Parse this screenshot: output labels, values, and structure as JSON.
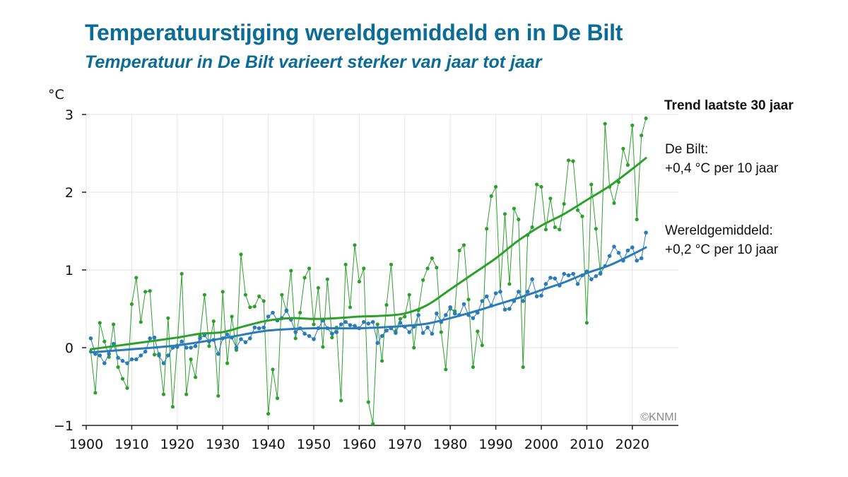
{
  "title": "Temperatuurstijging wereldgemiddeld en in De Bilt",
  "subtitle": "Temperatuur in De Bilt varieert sterker van jaar tot jaar",
  "credit": "©KNMI",
  "annotations": {
    "heading": "Trend laatste 30 jaar",
    "debilt_name": "De Bilt:",
    "debilt_rate": "+0,4 °C per 10 jaar",
    "world_name": "Wereldgemiddeld:",
    "world_rate": "+0,2 °C  per 10 jaar"
  },
  "colors": {
    "debilt": "#2ca02c",
    "world": "#2b7bba",
    "title": "#0b6c96"
  },
  "chart_data": {
    "type": "line",
    "ylabel": "°C",
    "ylim": [
      -1,
      3
    ],
    "xlim": [
      1900,
      2025
    ],
    "x_ticks": [
      "1900",
      "1910",
      "1920",
      "1930",
      "1940",
      "1950",
      "1960",
      "1970",
      "1980",
      "1990",
      "2000",
      "2010",
      "2020"
    ],
    "y_ticks": [
      "−1",
      "0",
      "1",
      "2",
      "3"
    ],
    "grid": true,
    "series": [
      {
        "key": "debilt_annual",
        "color": "#2ca02c",
        "x_start": 1901,
        "values": [
          -0.05,
          -0.58,
          0.32,
          0.08,
          -0.12,
          0.3,
          -0.25,
          -0.4,
          -0.52,
          0.56,
          0.9,
          0.33,
          0.72,
          0.73,
          -0.09,
          -0.08,
          -0.6,
          0.38,
          -0.76,
          0.03,
          0.95,
          -0.6,
          -0.15,
          -0.38,
          0.15,
          0.68,
          0.02,
          0.34,
          -0.62,
          0.72,
          -0.2,
          0.4,
          -0.03,
          1.2,
          0.68,
          0.52,
          0.53,
          0.66,
          0.6,
          -0.85,
          -0.28,
          -0.65,
          0.68,
          0.47,
          0.99,
          0.12,
          0.45,
          0.9,
          1.02,
          0.3,
          0.77,
          0.01,
          0.88,
          0.13,
          0.26,
          -0.68,
          1.07,
          0.52,
          1.32,
          0.85,
          1.02,
          -0.7,
          -0.98,
          0.3,
          -0.17,
          0.55,
          1.07,
          0.21,
          0.37,
          0.4,
          0.68,
          0.0,
          0.48,
          0.87,
          1.02,
          1.15,
          1.03,
          0.2,
          -0.28,
          0.5,
          0.47,
          1.25,
          1.32,
          0.62,
          -0.25,
          0.21,
          0.03,
          1.53,
          1.95,
          2.07,
          0.72,
          1.72,
          0.82,
          1.79,
          1.65,
          -0.25,
          1.45,
          1.55,
          2.1,
          2.07,
          1.52,
          1.92,
          1.55,
          1.52,
          1.85,
          2.41,
          2.4,
          1.77,
          1.69,
          0.32,
          2.1,
          1.53,
          0.95,
          2.88,
          2.07,
          1.86,
          2.13,
          2.56,
          2.35,
          2.86,
          1.65,
          2.73,
          2.95
        ]
      },
      {
        "key": "world_annual",
        "color": "#2b7bba",
        "x_start": 1901,
        "values": [
          0.12,
          -0.08,
          -0.1,
          -0.2,
          -0.08,
          0.05,
          -0.13,
          -0.17,
          -0.2,
          -0.15,
          -0.15,
          -0.1,
          -0.05,
          0.12,
          0.13,
          -0.1,
          -0.2,
          -0.1,
          0.0,
          0.01,
          0.08,
          0.0,
          0.0,
          0.02,
          0.12,
          0.16,
          0.08,
          0.1,
          -0.08,
          0.12,
          0.17,
          0.13,
          0.0,
          0.11,
          0.07,
          0.12,
          0.26,
          0.25,
          0.26,
          0.4,
          0.45,
          0.35,
          0.38,
          0.48,
          0.36,
          0.2,
          0.25,
          0.18,
          0.15,
          0.11,
          0.25,
          0.35,
          0.25,
          0.18,
          0.2,
          0.3,
          0.33,
          0.29,
          0.28,
          0.25,
          0.33,
          0.31,
          0.33,
          0.06,
          0.15,
          0.22,
          0.25,
          0.19,
          0.32,
          0.27,
          0.2,
          0.27,
          0.42,
          0.19,
          0.26,
          0.18,
          0.44,
          0.33,
          0.42,
          0.52,
          0.44,
          0.42,
          0.56,
          0.42,
          0.38,
          0.45,
          0.6,
          0.66,
          0.54,
          0.7,
          0.72,
          0.49,
          0.5,
          0.6,
          0.72,
          0.6,
          0.72,
          0.88,
          0.66,
          0.67,
          0.82,
          0.9,
          0.89,
          0.8,
          0.95,
          0.93,
          0.95,
          0.82,
          0.93,
          0.98,
          0.88,
          0.92,
          0.96,
          1.05,
          1.18,
          1.3,
          1.22,
          1.12,
          1.25,
          1.29,
          1.12,
          1.15,
          1.48
        ]
      },
      {
        "key": "debilt_trend",
        "color": "#2ca02c",
        "x": [
          1901,
          1910,
          1920,
          1925,
          1930,
          1935,
          1940,
          1945,
          1950,
          1955,
          1960,
          1965,
          1970,
          1975,
          1980,
          1985,
          1990,
          1995,
          2000,
          2005,
          2010,
          2015,
          2020,
          2023
        ],
        "values": [
          -0.02,
          0.05,
          0.13,
          0.18,
          0.2,
          0.28,
          0.35,
          0.38,
          0.37,
          0.38,
          0.4,
          0.41,
          0.44,
          0.55,
          0.75,
          0.95,
          1.15,
          1.38,
          1.57,
          1.72,
          1.9,
          2.08,
          2.3,
          2.44
        ]
      },
      {
        "key": "world_trend",
        "color": "#2b7bba",
        "x": [
          1901,
          1910,
          1920,
          1930,
          1940,
          1950,
          1960,
          1970,
          1975,
          1980,
          1985,
          1990,
          1995,
          2000,
          2005,
          2010,
          2015,
          2020,
          2023
        ],
        "values": [
          -0.06,
          -0.02,
          0.03,
          0.12,
          0.22,
          0.25,
          0.25,
          0.28,
          0.31,
          0.38,
          0.46,
          0.55,
          0.64,
          0.74,
          0.84,
          0.96,
          1.06,
          1.2,
          1.29
        ]
      }
    ]
  }
}
